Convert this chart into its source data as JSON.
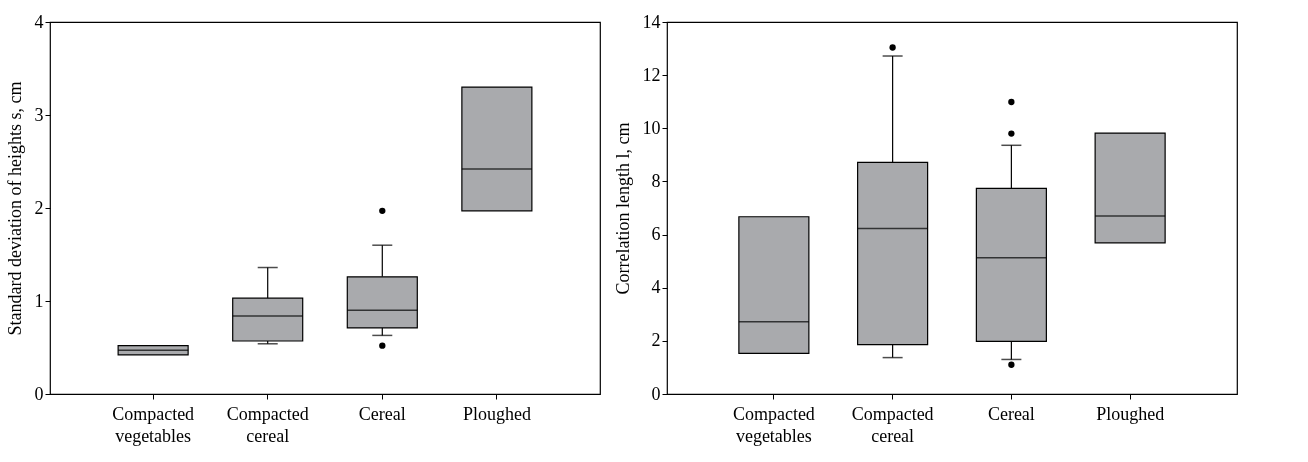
{
  "chart_data": [
    {
      "type": "box",
      "ylabel": "Standard deviation of heights s, cm",
      "categories": [
        "Compacted vegetables",
        "Compacted cereal",
        "Cereal",
        "Ploughed"
      ],
      "ylim": [
        0,
        4
      ],
      "yticks": [
        0,
        1,
        2,
        3,
        4
      ],
      "grid": false,
      "series": [
        {
          "color": "#a9aaad",
          "boxes": [
            {
              "low": 0.42,
              "q1": 0.42,
              "median": 0.47,
              "q3": 0.52,
              "high": 0.52
            },
            {
              "low": 0.54,
              "q1": 0.57,
              "median": 0.84,
              "q3": 1.03,
              "high": 1.36
            },
            {
              "low": 0.63,
              "q1": 0.71,
              "median": 0.9,
              "q3": 1.26,
              "high": 1.6,
              "outliers": [
                0.52,
                1.97
              ]
            },
            {
              "low": 1.97,
              "q1": 1.97,
              "median": 2.42,
              "q3": 3.3,
              "high": 3.3
            }
          ]
        }
      ]
    },
    {
      "type": "box",
      "ylabel": "Correlation length l, cm",
      "categories": [
        "Compacted vegetables",
        "Compacted cereal",
        "Cereal",
        "Ploughed"
      ],
      "ylim": [
        0,
        14
      ],
      "yticks": [
        0,
        2,
        4,
        6,
        8,
        10,
        12,
        14
      ],
      "grid": false,
      "series": [
        {
          "color": "#a9aaad",
          "boxes": [
            {
              "low": 1.53,
              "q1": 1.53,
              "median": 2.72,
              "q3": 6.67,
              "high": 6.67
            },
            {
              "low": 1.37,
              "q1": 1.86,
              "median": 6.23,
              "q3": 8.72,
              "high": 12.72,
              "outliers": [
                13.04
              ]
            },
            {
              "low": 1.3,
              "q1": 1.98,
              "median": 5.13,
              "q3": 7.74,
              "high": 9.36,
              "outliers": [
                1.1,
                9.8,
                10.99
              ]
            },
            {
              "low": 5.69,
              "q1": 5.69,
              "median": 6.7,
              "q3": 9.82,
              "high": 9.82
            }
          ]
        }
      ]
    }
  ]
}
